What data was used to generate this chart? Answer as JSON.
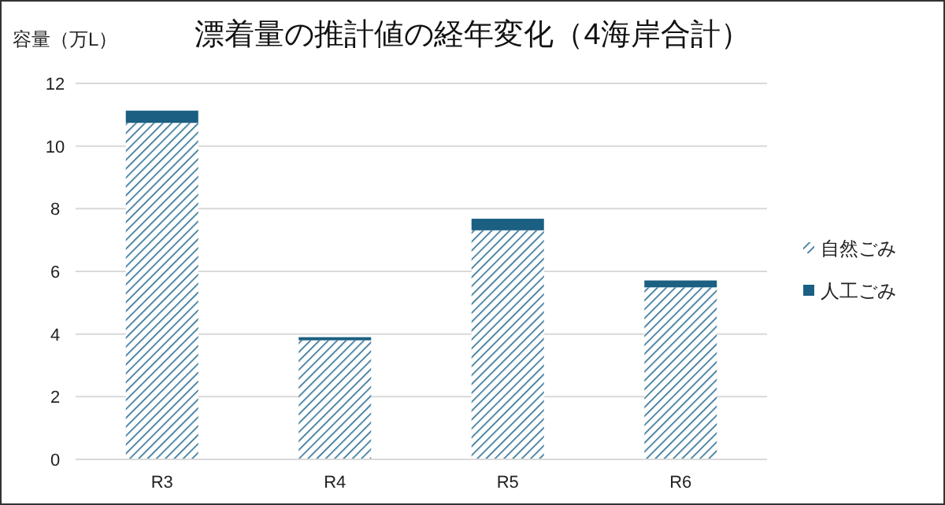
{
  "chart_data": {
    "type": "bar",
    "stacked": true,
    "title": "漂着量の推計値の経年変化（4海岸合計）",
    "ylabel": "容量（万L）",
    "categories": [
      "R3",
      "R4",
      "R5",
      "R6"
    ],
    "series": [
      {
        "name": "自然ごみ",
        "color": "#2a6e93",
        "values": [
          10.74,
          3.8,
          7.31,
          5.49
        ]
      },
      {
        "name": "人工ごみ",
        "color": "#1b5f82",
        "values": [
          0.39,
          0.1,
          0.37,
          0.22
        ]
      }
    ],
    "ylim": [
      0,
      12
    ],
    "yticks": [
      0,
      2,
      4,
      6,
      8,
      10,
      12
    ],
    "grid": "y",
    "legend": "right"
  }
}
